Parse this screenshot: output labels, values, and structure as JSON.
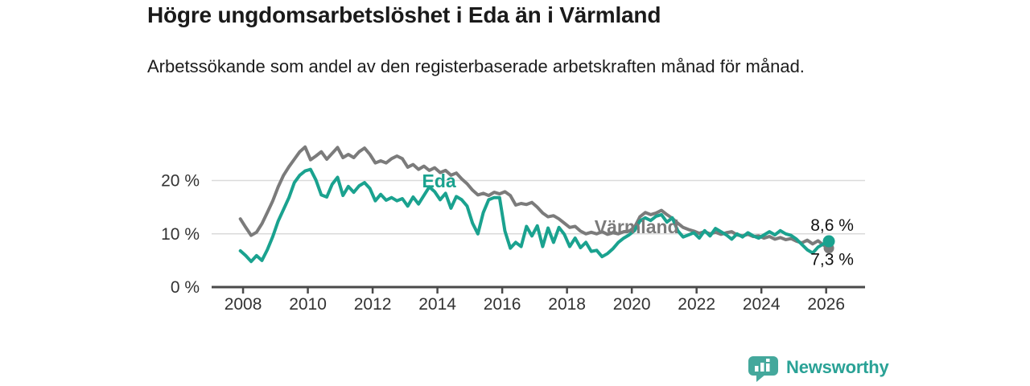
{
  "header": {
    "title": "Högre ungdomsarbetslöshet i Eda än i Värmland",
    "subtitle": "Arbetssökande som andel av den registerbaserade arbetskraften månad för månad."
  },
  "branding": {
    "name": "Newsworthy",
    "icon": "newsworthy-speech-bubble-bars-icon",
    "color": "#2aa296",
    "icon_color": "#44a89c"
  },
  "chart_data": {
    "type": "line",
    "title": "Högre ungdomsarbetslöshet i Eda än i Värmland",
    "subtitle": "Arbetssökande som andel av den registerbaserade arbetskraften månad för månad.",
    "grid": "horizontal",
    "grid_color": "#dadada",
    "axis_color": "#4a4a4a",
    "legend_position": "inline-labels",
    "x_axis": {
      "range": [
        2007.03,
        2027.2
      ],
      "ticks": [
        2008,
        2010,
        2012,
        2014,
        2016,
        2018,
        2020,
        2022,
        2024,
        2026
      ],
      "tick_labels": [
        "2008",
        "2010",
        "2012",
        "2014",
        "2016",
        "2018",
        "2020",
        "2022",
        "2024",
        "2026"
      ]
    },
    "y_axis": {
      "range": [
        0,
        28
      ],
      "unit": "%",
      "ticks": [
        0,
        10,
        20
      ],
      "tick_labels": [
        "0 %",
        "10 %",
        "20 %"
      ]
    },
    "series": [
      {
        "name": "Värmland",
        "color": "#7b7b7b",
        "start": 2007.9167,
        "step_years": 0.166667,
        "end_dot": true,
        "end_value": 7.3,
        "end_value_label": "7,3 %",
        "end_label_side": "below",
        "inline_label": {
          "text": "Värmland",
          "x": 2020.15,
          "y": 11.3
        },
        "values": [
          12.8,
          11.2,
          9.7,
          10.3,
          11.9,
          14.0,
          16.2,
          18.8,
          21.0,
          22.6,
          24.0,
          25.4,
          26.3,
          23.9,
          24.6,
          25.4,
          24.0,
          25.1,
          26.2,
          24.3,
          24.9,
          24.3,
          25.4,
          26.1,
          24.9,
          23.3,
          23.7,
          23.3,
          24.1,
          24.6,
          24.1,
          22.5,
          23.0,
          22.1,
          22.7,
          21.9,
          22.4,
          21.5,
          21.9,
          21.0,
          21.4,
          20.3,
          19.4,
          18.2,
          17.3,
          17.6,
          17.2,
          17.8,
          17.5,
          17.9,
          17.2,
          15.4,
          15.7,
          15.5,
          15.9,
          15.0,
          13.9,
          13.2,
          13.4,
          12.8,
          12.0,
          11.2,
          11.4,
          10.5,
          10.0,
          10.3,
          10.0,
          10.4,
          9.9,
          10.2,
          10.0,
          10.4,
          10.5,
          11.2,
          13.2,
          14.0,
          13.6,
          13.9,
          14.4,
          13.6,
          12.9,
          12.0,
          11.2,
          10.8,
          10.5,
          10.1,
          10.4,
          10.0,
          10.3,
          9.9,
          10.2,
          10.4,
          9.8,
          9.6,
          9.9,
          9.5,
          9.6,
          9.2,
          9.5,
          9.0,
          9.3,
          8.9,
          9.1,
          8.6,
          8.3,
          8.8,
          8.1,
          8.7,
          7.9,
          7.3
        ]
      },
      {
        "name": "Eda",
        "color": "#1aa28f",
        "start": 2007.9167,
        "step_years": 0.166667,
        "end_dot": true,
        "end_value": 8.6,
        "end_value_label": "8,6 %",
        "end_label_side": "above",
        "inline_label": {
          "text": "Eda",
          "x": 2014.05,
          "y": 19.9
        },
        "values": [
          6.8,
          5.9,
          4.8,
          5.9,
          5.0,
          7.0,
          9.5,
          12.4,
          14.6,
          16.8,
          19.6,
          21.0,
          21.8,
          22.1,
          20.1,
          17.3,
          16.9,
          19.3,
          20.6,
          17.2,
          18.9,
          17.8,
          19.0,
          19.6,
          18.5,
          16.2,
          17.4,
          16.3,
          16.8,
          16.2,
          16.6,
          15.2,
          16.9,
          15.6,
          17.2,
          18.8,
          17.9,
          16.4,
          17.6,
          14.8,
          17.0,
          16.4,
          15.2,
          12.0,
          10.0,
          14.0,
          16.4,
          16.8,
          16.8,
          10.5,
          7.3,
          8.4,
          7.6,
          11.4,
          9.6,
          11.5,
          7.6,
          11.1,
          8.4,
          11.2,
          9.9,
          7.6,
          9.2,
          7.4,
          8.4,
          6.7,
          6.9,
          5.7,
          6.3,
          7.2,
          8.4,
          9.2,
          9.8,
          10.6,
          12.4,
          13.0,
          12.5,
          13.3,
          13.6,
          12.2,
          13.0,
          10.6,
          9.4,
          9.8,
          10.2,
          9.2,
          10.6,
          9.6,
          11.0,
          10.4,
          9.8,
          9.0,
          10.0,
          9.4,
          10.2,
          9.6,
          9.2,
          9.8,
          10.4,
          9.8,
          10.6,
          10.0,
          9.7,
          9.0,
          8.0,
          7.0,
          6.4,
          7.5,
          8.1,
          8.6
        ]
      }
    ]
  }
}
